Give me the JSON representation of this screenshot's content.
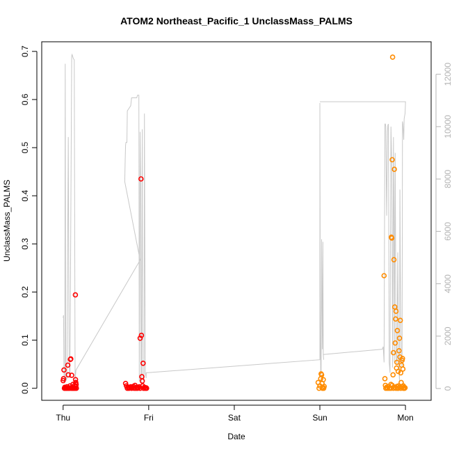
{
  "chart_data": {
    "type": "scatter",
    "title": "ATOM2 Northeast_Pacific_1 UnclassMass_PALMS",
    "xlabel": "Date",
    "ylabel": "UnclassMass_PALMS",
    "x_ticks": [
      "Thu",
      "Fri",
      "Sat",
      "Sun",
      "Mon"
    ],
    "x_tick_days": [
      0,
      1,
      2,
      3,
      4
    ],
    "xlim_days": [
      -0.25,
      4.3
    ],
    "y_left_ticks": [
      "0.0",
      "0.1",
      "0.2",
      "0.3",
      "0.4",
      "0.5",
      "0.6",
      "0.7"
    ],
    "y_left_tick_values": [
      0,
      0.1,
      0.2,
      0.3,
      0.4,
      0.5,
      0.6,
      0.7
    ],
    "ylim": [
      -0.025,
      0.72
    ],
    "y_right_ticks": [
      "0",
      "2000",
      "4000",
      "6000",
      "8000",
      "10000",
      "12000"
    ],
    "y_right_tick_values": [
      0,
      2000,
      4000,
      6000,
      8000,
      10000,
      12000
    ],
    "ylim_right": [
      -450,
      13240
    ],
    "grid": false,
    "colors": {
      "flight1": "#ff0000",
      "flight2": "#ff8c00",
      "altitude_line": "#c8c8c8",
      "axis": "#000000",
      "right_axis": "#b3b3b3"
    },
    "series": [
      {
        "color": "#ff0000",
        "points": [
          [
            0.0,
            0.016
          ],
          [
            0.005,
            0.02
          ],
          [
            0.01,
            0.038
          ],
          [
            0.015,
            0.0
          ],
          [
            0.02,
            0.002
          ],
          [
            0.025,
            0.0
          ],
          [
            0.03,
            0.001
          ],
          [
            0.035,
            0.0
          ],
          [
            0.04,
            0.0
          ],
          [
            0.045,
            0.003
          ],
          [
            0.05,
            0.0
          ],
          [
            0.055,
            0.048
          ],
          [
            0.06,
            0.028
          ],
          [
            0.065,
            0.0
          ],
          [
            0.07,
            0.001
          ],
          [
            0.075,
            0.0
          ],
          [
            0.08,
            0.005
          ],
          [
            0.085,
            0.06
          ],
          [
            0.09,
            0.061
          ],
          [
            0.095,
            0.0
          ],
          [
            0.1,
            0.027
          ],
          [
            0.105,
            0.002
          ],
          [
            0.11,
            0.0
          ],
          [
            0.115,
            0.008
          ],
          [
            0.12,
            0.0
          ],
          [
            0.125,
            0.001
          ],
          [
            0.13,
            0.0
          ],
          [
            0.135,
            0.006
          ],
          [
            0.14,
            0.0
          ],
          [
            0.143,
            0.194
          ],
          [
            0.145,
            0.018
          ],
          [
            0.148,
            0.012
          ],
          [
            0.15,
            0.003
          ],
          [
            0.152,
            0.008
          ],
          [
            0.155,
            0.0
          ],
          [
            0.73,
            0.01
          ],
          [
            0.74,
            0.005
          ],
          [
            0.75,
            0.0
          ],
          [
            0.76,
            0.002
          ],
          [
            0.77,
            0.0
          ],
          [
            0.78,
            0.001
          ],
          [
            0.79,
            0.003
          ],
          [
            0.8,
            0.0
          ],
          [
            0.81,
            0.002
          ],
          [
            0.82,
            0.004
          ],
          [
            0.83,
            0.0
          ],
          [
            0.84,
            0.006
          ],
          [
            0.85,
            0.0
          ],
          [
            0.86,
            0.002
          ],
          [
            0.87,
            0.0
          ],
          [
            0.88,
            0.001
          ],
          [
            0.89,
            0.003
          ],
          [
            0.9,
            0.0
          ],
          [
            0.9,
            0.104
          ],
          [
            0.91,
            0.435
          ],
          [
            0.915,
            0.11
          ],
          [
            0.92,
            0.024
          ],
          [
            0.925,
            0.015
          ],
          [
            0.93,
            0.005
          ],
          [
            0.935,
            0.052
          ],
          [
            0.94,
            0.0
          ],
          [
            0.95,
            0.002
          ],
          [
            0.96,
            0.0
          ],
          [
            0.97,
            0.001
          ],
          [
            0.975,
            0.0
          ]
        ]
      },
      {
        "color": "#ff8c00",
        "points": [
          [
            2.98,
            0.012
          ],
          [
            2.99,
            0.0
          ],
          [
            3.0,
            0.005
          ],
          [
            3.01,
            0.02
          ],
          [
            3.015,
            0.03
          ],
          [
            3.02,
            0.028
          ],
          [
            3.025,
            0.01
          ],
          [
            3.03,
            0.0
          ],
          [
            3.035,
            0.002
          ],
          [
            3.04,
            0.018
          ],
          [
            3.045,
            0.0
          ],
          [
            3.05,
            0.004
          ],
          [
            3.75,
            0.234
          ],
          [
            3.76,
            0.02
          ],
          [
            3.765,
            0.006
          ],
          [
            3.77,
            0.0
          ],
          [
            3.78,
            0.002
          ],
          [
            3.79,
            0.0
          ],
          [
            3.8,
            0.004
          ],
          [
            3.81,
            0.0
          ],
          [
            3.82,
            0.001
          ],
          [
            3.83,
            0.008
          ],
          [
            3.835,
            0.314
          ],
          [
            3.84,
            0.312
          ],
          [
            3.845,
            0.475
          ],
          [
            3.85,
            0.688
          ],
          [
            3.855,
            0.028
          ],
          [
            3.86,
            0.074
          ],
          [
            3.865,
            0.267
          ],
          [
            3.87,
            0.455
          ],
          [
            3.875,
            0.169
          ],
          [
            3.88,
            0.094
          ],
          [
            3.885,
            0.144
          ],
          [
            3.89,
            0.16
          ],
          [
            3.895,
            0.042
          ],
          [
            3.9,
            0.054
          ],
          [
            3.905,
            0.12
          ],
          [
            3.91,
            0.0
          ],
          [
            3.915,
            0.035
          ],
          [
            3.92,
            0.005
          ],
          [
            3.925,
            0.078
          ],
          [
            3.93,
            0.104
          ],
          [
            3.935,
            0.065
          ],
          [
            3.94,
            0.141
          ],
          [
            3.945,
            0.032
          ],
          [
            3.95,
            0.012
          ],
          [
            3.955,
            0.048
          ],
          [
            3.96,
            0.058
          ],
          [
            3.965,
            0.062
          ],
          [
            3.97,
            0.04
          ],
          [
            3.975,
            0.005
          ],
          [
            3.98,
            0.0
          ],
          [
            3.985,
            0.002
          ],
          [
            3.99,
            0.0
          ],
          [
            3.995,
            0.001
          ],
          [
            3.83,
            0.0
          ],
          [
            3.845,
            0.006
          ],
          [
            3.86,
            0.0
          ],
          [
            3.875,
            0.002
          ],
          [
            3.89,
            0.0
          ],
          [
            3.9,
            0.004
          ],
          [
            3.915,
            0.0
          ],
          [
            3.93,
            0.002
          ],
          [
            3.945,
            0.0
          ],
          [
            3.96,
            0.003
          ],
          [
            3.975,
            0.0
          ]
        ]
      }
    ],
    "altitude_line": {
      "color": "#c8c8c8",
      "points": [
        [
          0.0,
          2700
        ],
        [
          0.005,
          2800
        ],
        [
          0.01,
          600
        ],
        [
          0.015,
          200
        ],
        [
          0.02,
          400
        ],
        [
          0.025,
          12400
        ],
        [
          0.03,
          1200
        ],
        [
          0.035,
          300
        ],
        [
          0.045,
          400
        ],
        [
          0.06,
          9600
        ],
        [
          0.07,
          1000
        ],
        [
          0.08,
          400
        ],
        [
          0.1,
          12700
        ],
        [
          0.105,
          12750
        ],
        [
          0.11,
          12700
        ],
        [
          0.12,
          12600
        ],
        [
          0.13,
          12550
        ],
        [
          0.14,
          300
        ],
        [
          0.15,
          700
        ],
        [
          0.9,
          4900
        ],
        [
          0.72,
          7900
        ],
        [
          0.725,
          8700
        ],
        [
          0.73,
          9300
        ],
        [
          0.735,
          9400
        ],
        [
          0.745,
          9400
        ],
        [
          0.75,
          10600
        ],
        [
          0.76,
          10650
        ],
        [
          0.77,
          10700
        ],
        [
          0.78,
          10750
        ],
        [
          0.79,
          10800
        ],
        [
          0.8,
          11100
        ],
        [
          0.83,
          11100
        ],
        [
          0.86,
          11100
        ],
        [
          0.87,
          11200
        ],
        [
          0.885,
          11200
        ],
        [
          0.89,
          300
        ],
        [
          0.9,
          9800
        ],
        [
          0.905,
          8000
        ],
        [
          0.91,
          500
        ],
        [
          0.915,
          200
        ],
        [
          0.92,
          5000
        ],
        [
          0.925,
          9900
        ],
        [
          0.93,
          600
        ],
        [
          0.94,
          300
        ],
        [
          0.945,
          300
        ],
        [
          0.95,
          10500
        ],
        [
          0.96,
          600
        ],
        [
          0.97,
          400
        ],
        [
          0.97,
          600
        ],
        [
          3.0,
          1100
        ],
        [
          3.0,
          10900
        ],
        [
          3.005,
          3000
        ],
        [
          3.01,
          500
        ],
        [
          3.015,
          600
        ],
        [
          3.02,
          5700
        ],
        [
          3.025,
          3200
        ],
        [
          3.03,
          1500
        ],
        [
          3.035,
          5600
        ],
        [
          3.04,
          1300
        ],
        [
          3.045,
          1100
        ],
        [
          3.04,
          1300
        ],
        [
          3.73,
          1500
        ],
        [
          3.74,
          1600
        ],
        [
          3.75,
          1000
        ],
        [
          3.76,
          10100
        ],
        [
          3.765,
          10100
        ],
        [
          3.77,
          10000
        ],
        [
          3.78,
          6600
        ],
        [
          3.79,
          9800
        ],
        [
          3.795,
          10050
        ],
        [
          3.8,
          10100
        ],
        [
          3.81,
          1000
        ],
        [
          3.82,
          600
        ],
        [
          3.825,
          5600
        ],
        [
          3.83,
          10000
        ],
        [
          3.84,
          8500
        ],
        [
          3.85,
          800
        ],
        [
          3.86,
          9600
        ],
        [
          3.865,
          6500
        ],
        [
          3.87,
          1000
        ],
        [
          3.875,
          5800
        ],
        [
          3.88,
          9000
        ],
        [
          3.89,
          1200
        ],
        [
          3.9,
          900
        ],
        [
          3.91,
          5200
        ],
        [
          3.92,
          1000
        ],
        [
          3.925,
          700
        ],
        [
          3.93,
          300
        ],
        [
          3.935,
          7600
        ],
        [
          3.94,
          4500
        ],
        [
          3.95,
          1200
        ],
        [
          3.96,
          800
        ],
        [
          3.965,
          10200
        ],
        [
          3.97,
          10100
        ],
        [
          3.98,
          9500
        ],
        [
          3.985,
          10300
        ],
        [
          3.99,
          10400
        ],
        [
          3.995,
          10500
        ],
        [
          4.0,
          10900
        ],
        [
          4.0,
          10950
        ],
        [
          3.0,
          10950
        ]
      ]
    }
  }
}
